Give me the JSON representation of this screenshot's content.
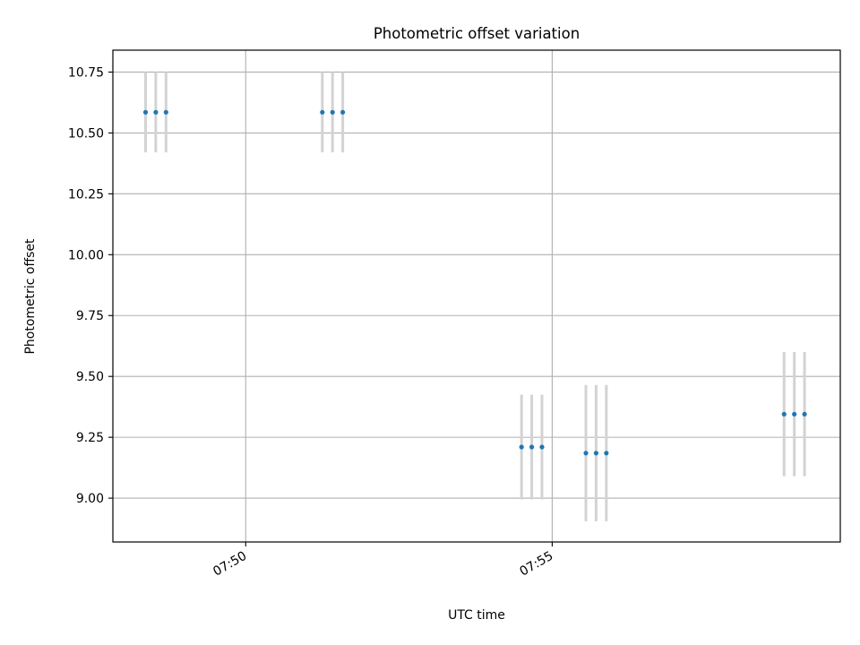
{
  "chart_data": {
    "type": "scatter",
    "title": "Photometric offset variation",
    "xlabel": "UTC time",
    "ylabel": "Photometric offset",
    "x_axis": {
      "unit": "UTC time of day",
      "range": [
        "07:47:50",
        "07:59:42"
      ],
      "ticks": [
        {
          "value": "07:50:00",
          "label": "07:50"
        },
        {
          "value": "07:55:00",
          "label": "07:55"
        }
      ],
      "tick_label_rotation_deg": 30
    },
    "y_axis": {
      "range": [
        8.82,
        10.84
      ],
      "ticks": [
        {
          "value": 9.0,
          "label": "9.00"
        },
        {
          "value": 9.25,
          "label": "9.25"
        },
        {
          "value": 9.5,
          "label": "9.50"
        },
        {
          "value": 9.75,
          "label": "9.75"
        },
        {
          "value": 10.0,
          "label": "10.00"
        },
        {
          "value": 10.25,
          "label": "10.25"
        },
        {
          "value": 10.5,
          "label": "10.50"
        },
        {
          "value": 10.75,
          "label": "10.75"
        }
      ]
    },
    "grid": true,
    "legend": "none",
    "marker_color": "#1f77b4",
    "errorbar_color": "#d3d3d3",
    "points": [
      {
        "time": "07:48:22",
        "y": 10.585,
        "err": 0.165
      },
      {
        "time": "07:48:32",
        "y": 10.585,
        "err": 0.165
      },
      {
        "time": "07:48:42",
        "y": 10.585,
        "err": 0.165
      },
      {
        "time": "07:51:15",
        "y": 10.585,
        "err": 0.165
      },
      {
        "time": "07:51:25",
        "y": 10.585,
        "err": 0.165
      },
      {
        "time": "07:51:35",
        "y": 10.585,
        "err": 0.165
      },
      {
        "time": "07:54:30",
        "y": 9.21,
        "err": 0.215
      },
      {
        "time": "07:54:40",
        "y": 9.21,
        "err": 0.215
      },
      {
        "time": "07:54:50",
        "y": 9.21,
        "err": 0.215
      },
      {
        "time": "07:55:33",
        "y": 9.185,
        "err": 0.28
      },
      {
        "time": "07:55:43",
        "y": 9.185,
        "err": 0.28
      },
      {
        "time": "07:55:53",
        "y": 9.185,
        "err": 0.28
      },
      {
        "time": "07:58:47",
        "y": 9.345,
        "err": 0.255
      },
      {
        "time": "07:58:57",
        "y": 9.345,
        "err": 0.255
      },
      {
        "time": "07:59:07",
        "y": 9.345,
        "err": 0.255
      }
    ]
  }
}
